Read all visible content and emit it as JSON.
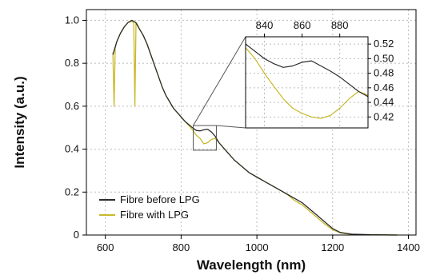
{
  "chart_data": {
    "type": "line",
    "xlabel": "Wavelength (nm)",
    "ylabel": "Intensity (a.u.)",
    "xlim": [
      550,
      1420
    ],
    "ylim": [
      0,
      1.05
    ],
    "xticks": [
      600,
      800,
      1000,
      1200,
      1400
    ],
    "yticks": [
      0,
      0.2,
      0.4,
      0.6,
      0.8,
      1.0
    ],
    "xtick_labels": [
      "600",
      "800",
      "1000",
      "1200",
      "1400"
    ],
    "ytick_labels": [
      "0",
      "0.2",
      "0.4",
      "0.6",
      "0.8",
      "1.0"
    ],
    "grid": true,
    "legend_position": "bottom-left",
    "colors": {
      "before": "#2b2b2b",
      "with": "#c9b92a",
      "grid": "#bbbbbb"
    },
    "series": [
      {
        "name": "Fibre before LPG",
        "x": [
          620,
          630,
          640,
          650,
          660,
          670,
          675,
          680,
          690,
          700,
          710,
          720,
          730,
          740,
          750,
          760,
          770,
          780,
          790,
          800,
          810,
          820,
          830,
          840,
          850,
          860,
          870,
          880,
          890,
          900,
          920,
          940,
          960,
          980,
          1000,
          1020,
          1040,
          1060,
          1080,
          1100,
          1120,
          1140,
          1160,
          1180,
          1200,
          1220,
          1250,
          1300,
          1370
        ],
        "y": [
          0.84,
          0.9,
          0.94,
          0.97,
          0.99,
          1.0,
          0.995,
          0.99,
          0.96,
          0.93,
          0.89,
          0.84,
          0.79,
          0.74,
          0.69,
          0.65,
          0.62,
          0.59,
          0.57,
          0.55,
          0.53,
          0.515,
          0.5,
          0.487,
          0.485,
          0.49,
          0.493,
          0.48,
          0.46,
          0.43,
          0.39,
          0.35,
          0.32,
          0.29,
          0.27,
          0.25,
          0.23,
          0.21,
          0.19,
          0.17,
          0.15,
          0.12,
          0.09,
          0.06,
          0.03,
          0.012,
          0.004,
          0.001,
          0.0
        ]
      },
      {
        "name": "Fibre with LPG",
        "x": [
          620,
          623,
          626,
          630,
          640,
          650,
          660,
          670,
          675,
          678,
          681,
          685,
          690,
          700,
          710,
          720,
          730,
          740,
          750,
          760,
          770,
          780,
          790,
          800,
          810,
          820,
          830,
          840,
          850,
          860,
          870,
          880,
          890,
          900,
          920,
          940,
          960,
          980,
          1000,
          1020,
          1040,
          1060,
          1080,
          1100,
          1120,
          1140,
          1160,
          1180,
          1200,
          1220,
          1250,
          1300,
          1370
        ],
        "y": [
          0.85,
          0.6,
          0.87,
          0.9,
          0.94,
          0.97,
          0.99,
          0.995,
          0.99,
          0.6,
          0.99,
          0.98,
          0.96,
          0.93,
          0.89,
          0.84,
          0.79,
          0.74,
          0.69,
          0.65,
          0.62,
          0.59,
          0.57,
          0.55,
          0.53,
          0.51,
          0.49,
          0.465,
          0.45,
          0.425,
          0.43,
          0.445,
          0.45,
          0.43,
          0.39,
          0.35,
          0.32,
          0.29,
          0.27,
          0.25,
          0.23,
          0.21,
          0.19,
          0.16,
          0.14,
          0.11,
          0.08,
          0.05,
          0.025,
          0.01,
          0.003,
          0.001,
          0.0
        ]
      }
    ],
    "inset": {
      "xlim": [
        830,
        895
      ],
      "ylim": [
        0.405,
        0.53
      ],
      "xticks": [
        840,
        860,
        880
      ],
      "xtick_labels": [
        "840",
        "860",
        "880"
      ],
      "yticks": [
        0.42,
        0.44,
        0.46,
        0.48,
        0.5,
        0.52
      ],
      "ytick_labels": [
        "0.42",
        "0.44",
        "0.46",
        "0.48",
        "0.50",
        "0.52"
      ],
      "zoom_region": {
        "x": [
          832,
          893
        ],
        "y": [
          0.395,
          0.51
        ]
      },
      "series": [
        {
          "name": "Fibre before LPG",
          "x": [
            830,
            835,
            840,
            845,
            850,
            855,
            860,
            865,
            870,
            875,
            880,
            885,
            890,
            895
          ],
          "y": [
            0.52,
            0.51,
            0.5,
            0.493,
            0.488,
            0.49,
            0.495,
            0.497,
            0.49,
            0.483,
            0.475,
            0.465,
            0.455,
            0.448
          ]
        },
        {
          "name": "Fibre with LPG",
          "x": [
            830,
            835,
            840,
            845,
            850,
            855,
            860,
            865,
            870,
            875,
            880,
            885,
            890,
            895
          ],
          "y": [
            0.515,
            0.5,
            0.48,
            0.462,
            0.445,
            0.432,
            0.425,
            0.42,
            0.418,
            0.422,
            0.432,
            0.445,
            0.455,
            0.45
          ]
        }
      ]
    }
  }
}
